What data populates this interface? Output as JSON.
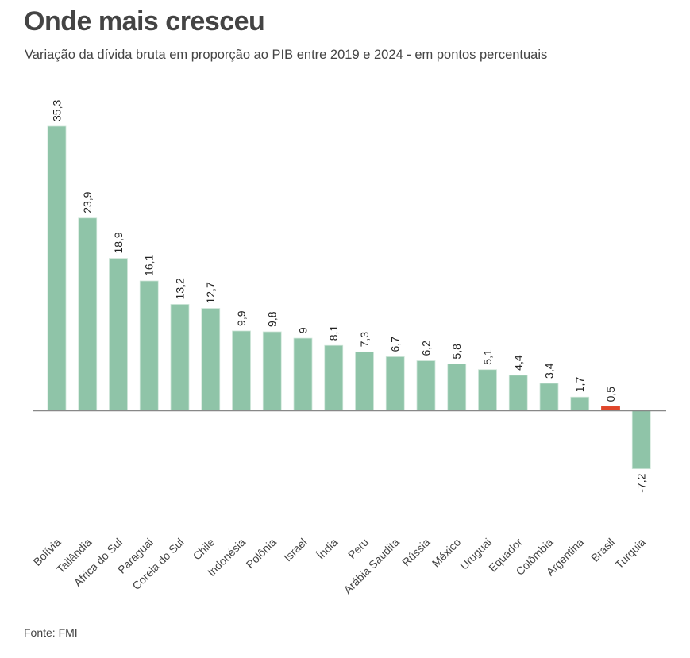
{
  "header": {
    "title": "Onde mais cresceu",
    "subtitle": "Variação da dívida bruta em proporção ao PIB entre 2019 e 2024 - em pontos percentuais"
  },
  "footer": {
    "source": "Fonte: FMI"
  },
  "colors": {
    "bar_default": "#8fc4a8",
    "bar_highlight": "#e0462a",
    "axis": "#888888"
  },
  "chart_data": {
    "type": "bar",
    "title": "Onde mais cresceu",
    "subtitle": "Variação da dívida bruta em proporção ao PIB entre 2019 e 2024 - em pontos percentuais",
    "xlabel": "",
    "ylabel": "",
    "ylim": [
      -7.2,
      35.3
    ],
    "grid": false,
    "legend": "none",
    "highlight": "Brasil",
    "categories": [
      "Bolívia",
      "Tailândia",
      "África do Sul",
      "Paraguai",
      "Coreia do Sul",
      "Chile",
      "Indonésia",
      "Polônia",
      "Israel",
      "Índia",
      "Peru",
      "Arábia Saudita",
      "Rússia",
      "México",
      "Uruguai",
      "Equador",
      "Colômbia",
      "Argentina",
      "Brasil",
      "Turquia"
    ],
    "values": [
      35.3,
      23.9,
      18.9,
      16.1,
      13.2,
      12.7,
      9.9,
      9.8,
      9,
      8.1,
      7.3,
      6.7,
      6.2,
      5.8,
      5.1,
      4.4,
      3.4,
      1.7,
      0.5,
      -7.2
    ],
    "value_labels": [
      "35,3",
      "23,9",
      "18,9",
      "16,1",
      "13,2",
      "12,7",
      "9,9",
      "9,8",
      "9",
      "8,1",
      "7,3",
      "6,7",
      "6,2",
      "5,8",
      "5,1",
      "4,4",
      "3,4",
      "1,7",
      "0,5",
      "-7,2"
    ],
    "source": "Fonte: FMI"
  }
}
